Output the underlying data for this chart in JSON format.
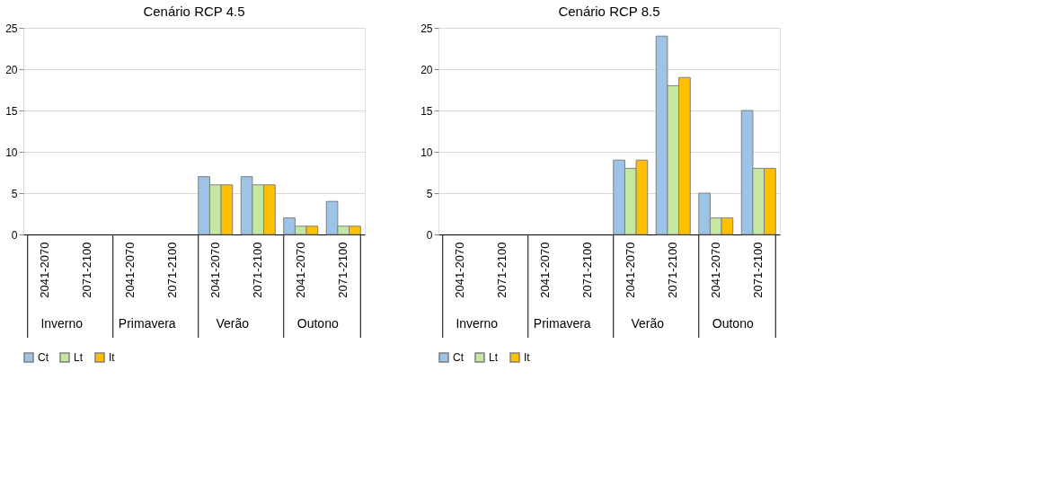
{
  "chart_data": [
    {
      "type": "bar",
      "title": "Cenário RCP 4.5",
      "categories": [
        "2041-2070",
        "2071-2100",
        "2041-2070",
        "2071-2100",
        "2041-2070",
        "2071-2100",
        "2041-2070",
        "2071-2100"
      ],
      "annotations": [
        "Inverno",
        "Primavera",
        "Verão",
        "Outono"
      ],
      "series": [
        {
          "name": "Ct",
          "color": "#9dc3e6",
          "values": [
            0,
            0,
            0,
            0,
            7,
            7,
            2,
            4
          ]
        },
        {
          "name": "Lt",
          "color": "#c5e8a0",
          "values": [
            0,
            0,
            0,
            0,
            6,
            6,
            1,
            1
          ]
        },
        {
          "name": "It",
          "color": "#ffc000",
          "values": [
            0,
            0,
            0,
            0,
            6,
            6,
            1,
            1
          ]
        }
      ],
      "ylim": [
        0,
        25
      ],
      "yticks": [
        0,
        5,
        10,
        15,
        20,
        25
      ],
      "grid": "y",
      "legend": "bottom"
    },
    {
      "type": "bar",
      "title": "Cenário RCP 8.5",
      "categories": [
        "2041-2070",
        "2071-2100",
        "2041-2070",
        "2071-2100",
        "2041-2070",
        "2071-2100",
        "2041-2070",
        "2071-2100"
      ],
      "annotations": [
        "Inverno",
        "Primavera",
        "Verão",
        "Outono"
      ],
      "series": [
        {
          "name": "Ct",
          "color": "#9dc3e6",
          "values": [
            0,
            0,
            0,
            0,
            9,
            24,
            5,
            15
          ]
        },
        {
          "name": "Lt",
          "color": "#c5e8a0",
          "values": [
            0,
            0,
            0,
            0,
            8,
            18,
            2,
            8
          ]
        },
        {
          "name": "It",
          "color": "#ffc000",
          "values": [
            0,
            0,
            0,
            0,
            9,
            19,
            2,
            8
          ]
        }
      ],
      "ylim": [
        0,
        25
      ],
      "yticks": [
        0,
        5,
        10,
        15,
        20,
        25
      ],
      "grid": "y",
      "legend": "bottom"
    }
  ]
}
